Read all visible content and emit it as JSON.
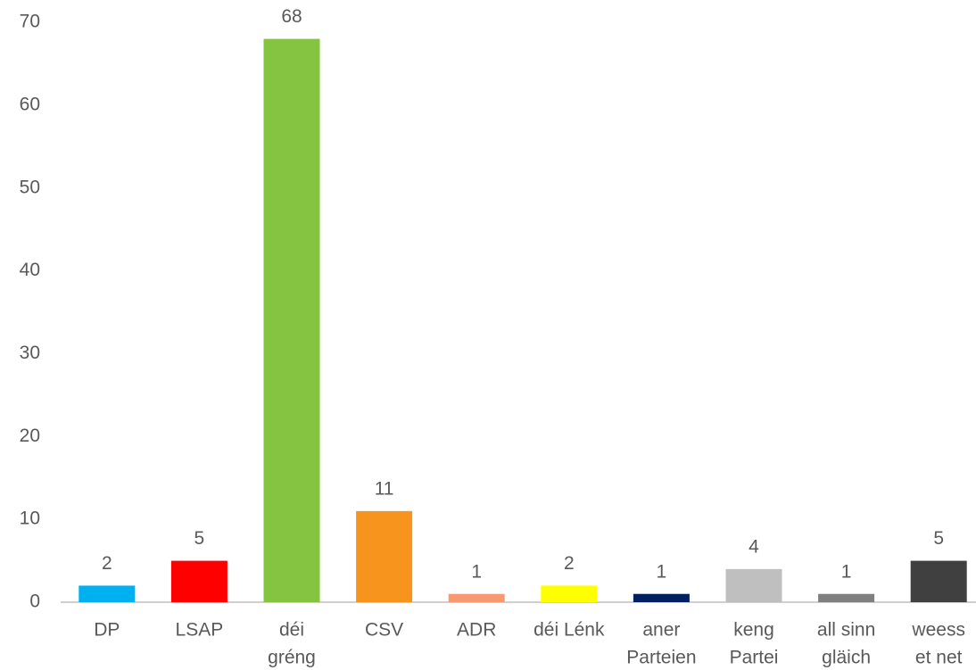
{
  "chart_data": {
    "type": "bar",
    "categories": [
      "DP",
      "LSAP",
      [
        "déi",
        "gréng"
      ],
      "CSV",
      "ADR",
      "déi Lénk",
      [
        "aner",
        "Parteien"
      ],
      [
        "keng",
        "Partei"
      ],
      [
        "all sinn",
        "gläich"
      ],
      [
        "weess",
        "et net"
      ]
    ],
    "values": [
      2,
      5,
      68,
      11,
      1,
      2,
      1,
      4,
      1,
      5
    ],
    "colors": [
      "#00b0f0",
      "#ff0000",
      "#84c441",
      "#f7941d",
      "#f79a72",
      "#ffff00",
      "#002060",
      "#bfbfbf",
      "#808080",
      "#404040"
    ],
    "ylim": [
      0,
      70
    ],
    "yticks": [
      0,
      10,
      20,
      30,
      40,
      50,
      60,
      70
    ],
    "grid": false
  }
}
